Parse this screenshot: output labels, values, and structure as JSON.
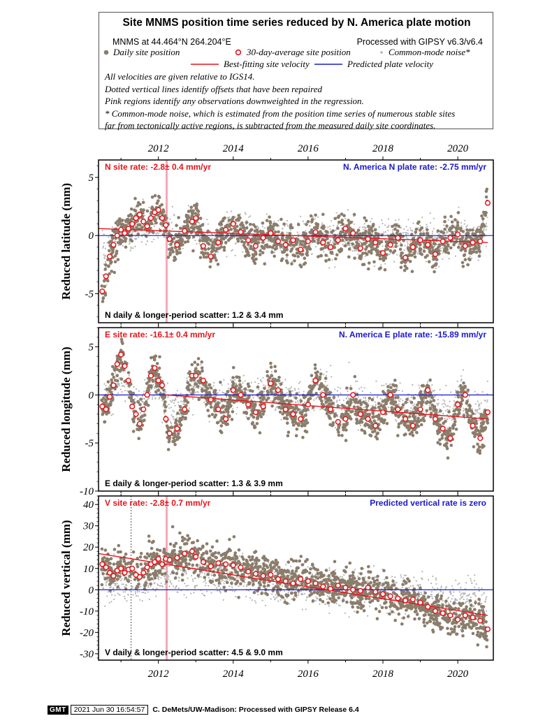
{
  "legend": {
    "title": "Site MNMS position time series reduced by N. America plate motion",
    "coords": "MNMS at 44.464°N 264.204°E",
    "processed": "Processed with GIPSY v6.3/v6.4",
    "daily_label": "Daily site position",
    "avg_label": "30-day-average site position",
    "cm_label": "Common-mode noise*",
    "best_label": "Best-fitting site velocity",
    "pred_label": "Predicted plate velocity",
    "notes": [
      "All velocities are given relative to IGS14.",
      "Dotted vertical lines identify offsets that have been repaired",
      "Pink regions identify any observations downweighted in the regression.",
      "* Common-mode noise, which is estimated from the position time series of numerous stable sites",
      "far from tectonically active regions, is subtracted from the measured daily site coordinates."
    ],
    "colors": {
      "daily": "#8b7d6b",
      "avg_edge": "#e8141a",
      "cm": "#b4b4b4",
      "best": "#e8141a",
      "pred": "#1a1acc",
      "pink": "#f7a8b8"
    }
  },
  "footer": {
    "logo": "GMT",
    "timestamp": "2021 Jun 30 16:54:57",
    "credit": "C. DeMets/UW-Madison: Processed with GIPSY Release 6.4"
  },
  "chart_data": [
    {
      "type": "scatter",
      "component": "N",
      "ylabel": "Reduced latitude (mm)",
      "ylim": [
        -7.5,
        6.5
      ],
      "yticks": [
        -5,
        0,
        5
      ],
      "xlim": [
        2010.4,
        2020.95
      ],
      "xticks": [
        2012,
        2014,
        2016,
        2018,
        2020
      ],
      "rate_label": "N site rate:  -2.8± 0.4 mm/yr",
      "plate_label": "N. America N plate rate: -2.75 mm/yr",
      "scatter_label": "N daily & longer-period scatter:   1.2 &   3.4 mm",
      "best_fit": {
        "x": [
          2010.4,
          2020.8
        ],
        "y": [
          0.6,
          -0.6
        ]
      },
      "predicted": {
        "x": [
          2010.4,
          2020.95
        ],
        "y": [
          0,
          0
        ]
      },
      "downweighted_x": [
        2012.22
      ],
      "repaired_offset_x": [],
      "avg_x": [
        2010.5,
        2010.6,
        2010.7,
        2010.8,
        2010.9,
        2011.0,
        2011.1,
        2011.2,
        2011.3,
        2011.4,
        2011.5,
        2011.6,
        2011.7,
        2011.8,
        2011.9,
        2012.0,
        2012.1,
        2012.2,
        2012.3,
        2012.5,
        2012.7,
        2012.9,
        2013.0,
        2013.2,
        2013.4,
        2013.6,
        2013.8,
        2014.0,
        2014.2,
        2014.4,
        2014.6,
        2014.8,
        2015.0,
        2015.2,
        2015.4,
        2015.6,
        2015.8,
        2016.0,
        2016.2,
        2016.4,
        2016.6,
        2016.8,
        2017.0,
        2017.2,
        2017.4,
        2017.6,
        2017.8,
        2018.0,
        2018.2,
        2018.4,
        2018.6,
        2018.8,
        2019.0,
        2019.2,
        2019.4,
        2019.6,
        2019.8,
        2020.0,
        2020.2,
        2020.4,
        2020.6,
        2020.8
      ],
      "avg_y": [
        -4.8,
        -3.5,
        -1.8,
        -0.8,
        0.0,
        0.5,
        0.2,
        0.6,
        1.0,
        1.5,
        1.8,
        1.2,
        0.8,
        1.5,
        2.0,
        2.2,
        1.5,
        0.9,
        -0.3,
        -0.8,
        0.4,
        1.2,
        1.5,
        -0.9,
        -1.8,
        -0.6,
        0.5,
        1.0,
        0.3,
        -0.4,
        -0.9,
        -0.2,
        0.2,
        -0.5,
        -0.8,
        -0.4,
        -1.2,
        -0.5,
        0.3,
        -0.6,
        -1.0,
        -0.4,
        0.6,
        0.2,
        -1.1,
        -0.3,
        -0.6,
        -1.5,
        -0.8,
        -0.2,
        -1.9,
        -1.0,
        -0.4,
        -0.8,
        -1.6,
        -0.5,
        -0.2,
        0.1,
        -0.9,
        -0.6,
        -0.5,
        2.8
      ]
    },
    {
      "type": "scatter",
      "component": "E",
      "ylabel": "Reduced longitude (mm)",
      "ylim": [
        -10,
        7
      ],
      "yticks": [
        -10,
        -5,
        0,
        5
      ],
      "xlim": [
        2010.4,
        2020.95
      ],
      "xticks": [
        2012,
        2014,
        2016,
        2018,
        2020
      ],
      "rate_label": "E site rate:  -16.1± 0.4 mm/yr",
      "plate_label": "N. America E plate rate: -15.89 mm/yr",
      "scatter_label": "E daily & longer-period scatter:   1.3 &   3.9 mm",
      "best_fit": {
        "x": [
          2012.2,
          2020.8
        ],
        "y": [
          0.0,
          -2.5
        ]
      },
      "predicted": {
        "x": [
          2010.4,
          2020.95
        ],
        "y": [
          0,
          0
        ]
      },
      "downweighted_x": [],
      "repaired_offset_x": [],
      "avg_x": [
        2010.5,
        2010.6,
        2010.7,
        2010.8,
        2010.9,
        2011.0,
        2011.1,
        2011.2,
        2011.3,
        2011.4,
        2011.5,
        2011.6,
        2011.7,
        2011.8,
        2011.9,
        2012.0,
        2012.1,
        2012.2,
        2012.3,
        2012.5,
        2012.7,
        2012.9,
        2013.0,
        2013.2,
        2013.4,
        2013.6,
        2013.8,
        2014.0,
        2014.2,
        2014.4,
        2014.6,
        2014.8,
        2015.0,
        2015.2,
        2015.4,
        2015.6,
        2015.8,
        2016.0,
        2016.2,
        2016.4,
        2016.6,
        2016.8,
        2017.0,
        2017.2,
        2017.4,
        2017.6,
        2017.8,
        2018.0,
        2018.2,
        2018.4,
        2018.6,
        2018.8,
        2019.0,
        2019.2,
        2019.4,
        2019.6,
        2019.8,
        2020.0,
        2020.2,
        2020.4,
        2020.6,
        2020.8
      ],
      "avg_y": [
        -1.2,
        -1.5,
        -0.2,
        1.0,
        3.2,
        4.2,
        3.0,
        1.5,
        -1.2,
        -2.0,
        -3.0,
        -1.5,
        0.0,
        2.0,
        2.8,
        1.5,
        1.0,
        -2.5,
        -4.0,
        -3.5,
        -1.5,
        2.0,
        2.0,
        1.5,
        -0.5,
        -1.5,
        -2.5,
        0.5,
        0.0,
        -1.0,
        -1.8,
        -1.2,
        1.2,
        0.5,
        -1.5,
        -2.0,
        -2.5,
        -1.0,
        1.5,
        0.0,
        -1.5,
        -2.8,
        -2.5,
        0.0,
        -2.0,
        -2.5,
        -3.2,
        -1.8,
        0.0,
        -1.5,
        -2.5,
        -3.2,
        -1.5,
        0.5,
        -2.5,
        -3.5,
        -4.5,
        -1.0,
        0.0,
        -3.2,
        -4.5,
        -1.8
      ]
    },
    {
      "type": "scatter",
      "component": "V",
      "ylabel": "Reduced vertical (mm)",
      "ylim": [
        -33,
        44
      ],
      "yticks": [
        -30,
        -20,
        -10,
        0,
        10,
        20,
        30,
        40
      ],
      "xlim": [
        2010.4,
        2020.95
      ],
      "xticks": [
        2012,
        2014,
        2016,
        2018,
        2020
      ],
      "rate_label": "V site rate:  -2.8± 0.7 mm/yr",
      "plate_label": "Predicted vertical rate is zero",
      "scatter_label": "V daily & longer-period scatter:   4.5 &   9.0 mm",
      "best_fit": {
        "x": [
          2010.4,
          2020.8
        ],
        "y": [
          17.0,
          -12.0
        ]
      },
      "predicted": {
        "x": [
          2010.4,
          2020.95
        ],
        "y": [
          0,
          0
        ]
      },
      "downweighted_x": [
        2012.22
      ],
      "repaired_offset_x": [
        2011.27
      ],
      "avg_x": [
        2010.5,
        2010.6,
        2010.7,
        2010.8,
        2010.9,
        2011.0,
        2011.1,
        2011.2,
        2011.3,
        2011.4,
        2011.5,
        2011.6,
        2011.7,
        2011.8,
        2011.9,
        2012.0,
        2012.1,
        2012.2,
        2012.3,
        2012.5,
        2012.7,
        2012.9,
        2013.0,
        2013.2,
        2013.4,
        2013.6,
        2013.8,
        2014.0,
        2014.2,
        2014.4,
        2014.6,
        2014.8,
        2015.0,
        2015.2,
        2015.4,
        2015.6,
        2015.8,
        2016.0,
        2016.2,
        2016.4,
        2016.6,
        2016.8,
        2017.0,
        2017.2,
        2017.4,
        2017.6,
        2017.8,
        2018.0,
        2018.2,
        2018.4,
        2018.6,
        2018.8,
        2019.0,
        2019.2,
        2019.4,
        2019.6,
        2019.8,
        2020.0,
        2020.2,
        2020.4,
        2020.6,
        2020.8
      ],
      "avg_y": [
        12.0,
        10.5,
        8.0,
        6.5,
        9.0,
        10.0,
        8.0,
        9.5,
        10.0,
        7.0,
        6.0,
        8.0,
        10.5,
        12.0,
        13.0,
        14.5,
        12.0,
        14.5,
        14.0,
        15.0,
        17.0,
        18.0,
        15.5,
        13.0,
        11.0,
        12.5,
        12.0,
        11.5,
        10.5,
        8.5,
        7.5,
        6.5,
        7.0,
        5.0,
        4.0,
        3.0,
        5.0,
        4.0,
        3.0,
        1.5,
        0.5,
        2.0,
        1.0,
        0.0,
        -0.5,
        1.0,
        -1.0,
        -2.0,
        -3.0,
        -4.0,
        -5.0,
        -4.5,
        -6.0,
        -8.0,
        -10.0,
        -11.0,
        -12.0,
        -14.0,
        -12.0,
        -13.0,
        -14.5,
        -18.5
      ]
    }
  ]
}
